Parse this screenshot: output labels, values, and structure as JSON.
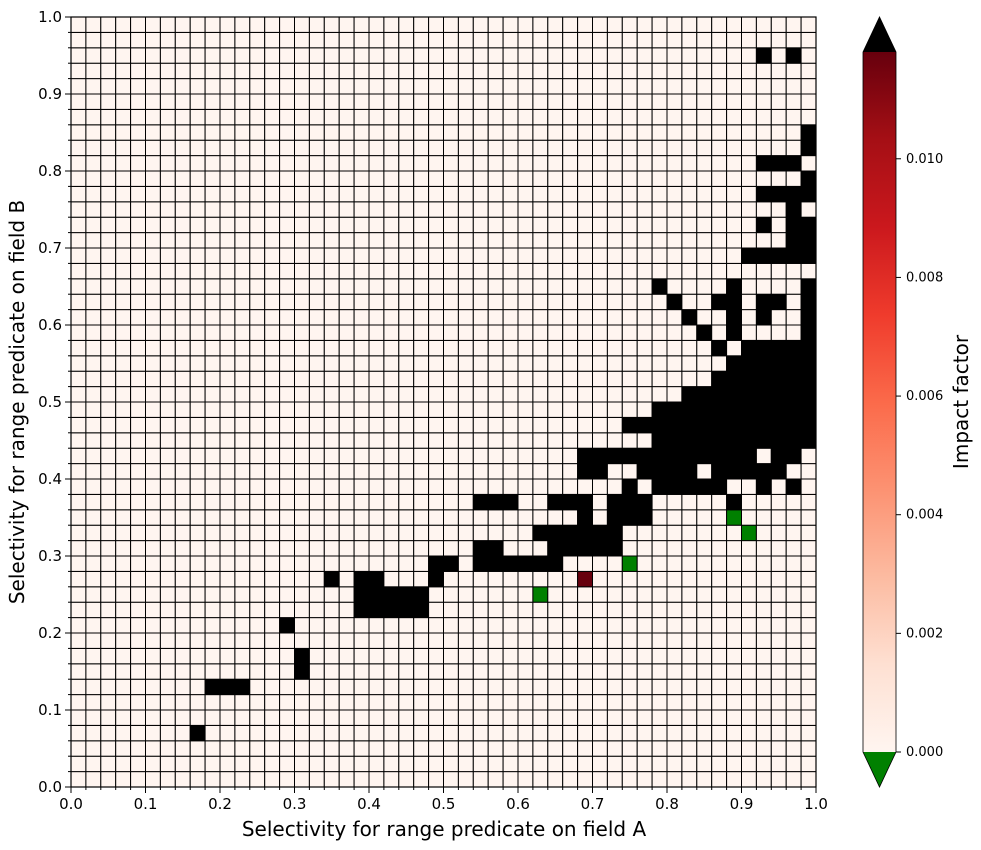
{
  "chart_data": {
    "type": "heatmap",
    "title": "",
    "xlabel": "Selectivity for range predicate on field A",
    "ylabel": "Selectivity for range predicate on field B",
    "xlim": [
      0.0,
      1.0
    ],
    "ylim": [
      0.0,
      1.0
    ],
    "grid_size": 50,
    "x_ticks": [
      "0.0",
      "0.1",
      "0.2",
      "0.3",
      "0.4",
      "0.5",
      "0.6",
      "0.7",
      "0.8",
      "0.9",
      "1.0"
    ],
    "y_ticks": [
      "0.0",
      "0.1",
      "0.2",
      "0.3",
      "0.4",
      "0.5",
      "0.6",
      "0.7",
      "0.8",
      "0.9",
      "1.0"
    ],
    "colorbar": {
      "label": "Impact factor",
      "colormap": "Reds",
      "vmin": 0.0,
      "vmax": 0.0118,
      "ticks": [
        "0.000",
        "0.002",
        "0.004",
        "0.006",
        "0.008",
        "0.010"
      ],
      "tick_values": [
        0.0,
        0.002,
        0.004,
        0.006,
        0.008,
        0.01
      ],
      "over_color": "#000000",
      "under_color": "#008000"
    },
    "background_value": 0.0002,
    "cell_colors": {
      "base": "#fff5f0",
      "over": "#000000",
      "under": "#008000",
      "max": "#67000d"
    },
    "over_cells": [
      [
        8,
        3
      ],
      [
        9,
        6
      ],
      [
        10,
        6
      ],
      [
        11,
        6
      ],
      [
        15,
        7
      ],
      [
        15,
        8
      ],
      [
        14,
        10
      ],
      [
        19,
        11
      ],
      [
        20,
        11
      ],
      [
        21,
        11
      ],
      [
        22,
        11
      ],
      [
        23,
        11
      ],
      [
        17,
        13
      ],
      [
        19,
        12
      ],
      [
        20,
        12
      ],
      [
        19,
        13
      ],
      [
        20,
        13
      ],
      [
        21,
        12
      ],
      [
        22,
        12
      ],
      [
        23,
        12
      ],
      [
        24,
        13
      ],
      [
        24,
        14
      ],
      [
        25,
        14
      ],
      [
        27,
        14
      ],
      [
        27,
        15
      ],
      [
        28,
        14
      ],
      [
        28,
        15
      ],
      [
        29,
        14
      ],
      [
        30,
        14
      ],
      [
        31,
        14
      ],
      [
        32,
        14
      ],
      [
        32,
        15
      ],
      [
        33,
        15
      ],
      [
        34,
        15
      ],
      [
        35,
        15
      ],
      [
        36,
        15
      ],
      [
        27,
        18
      ],
      [
        28,
        18
      ],
      [
        29,
        18
      ],
      [
        31,
        16
      ],
      [
        32,
        16
      ],
      [
        33,
        16
      ],
      [
        34,
        16
      ],
      [
        35,
        16
      ],
      [
        36,
        16
      ],
      [
        36,
        17
      ],
      [
        37,
        17
      ],
      [
        38,
        17
      ],
      [
        34,
        17
      ],
      [
        32,
        18
      ],
      [
        33,
        18
      ],
      [
        34,
        18
      ],
      [
        34,
        20
      ],
      [
        34,
        21
      ],
      [
        35,
        20
      ],
      [
        35,
        21
      ],
      [
        36,
        18
      ],
      [
        37,
        19
      ],
      [
        37,
        18
      ],
      [
        38,
        20
      ],
      [
        36,
        21
      ],
      [
        37,
        21
      ],
      [
        38,
        21
      ],
      [
        39,
        21
      ],
      [
        39,
        19
      ],
      [
        40,
        19
      ],
      [
        41,
        19
      ],
      [
        42,
        19
      ],
      [
        43,
        19
      ],
      [
        38,
        18
      ],
      [
        39,
        20
      ],
      [
        40,
        20
      ],
      [
        40,
        21
      ],
      [
        41,
        20
      ],
      [
        41,
        21
      ],
      [
        42,
        21
      ],
      [
        43,
        21
      ],
      [
        43,
        20
      ],
      [
        44,
        20
      ],
      [
        45,
        20
      ],
      [
        39,
        22
      ],
      [
        40,
        22
      ],
      [
        41,
        22
      ],
      [
        42,
        22
      ],
      [
        43,
        22
      ],
      [
        44,
        22
      ],
      [
        45,
        22
      ],
      [
        46,
        22
      ],
      [
        47,
        22
      ],
      [
        48,
        22
      ],
      [
        49,
        22
      ],
      [
        44,
        23
      ],
      [
        45,
        23
      ],
      [
        46,
        23
      ],
      [
        47,
        23
      ],
      [
        48,
        23
      ],
      [
        49,
        23
      ],
      [
        43,
        23
      ],
      [
        42,
        23
      ],
      [
        41,
        23
      ],
      [
        40,
        23
      ],
      [
        39,
        23
      ],
      [
        38,
        23
      ],
      [
        37,
        23
      ],
      [
        44,
        24
      ],
      [
        45,
        24
      ],
      [
        46,
        24
      ],
      [
        47,
        24
      ],
      [
        48,
        24
      ],
      [
        49,
        24
      ],
      [
        43,
        24
      ],
      [
        42,
        24
      ],
      [
        41,
        24
      ],
      [
        40,
        24
      ],
      [
        39,
        24
      ],
      [
        44,
        25
      ],
      [
        45,
        25
      ],
      [
        46,
        25
      ],
      [
        47,
        25
      ],
      [
        48,
        25
      ],
      [
        49,
        25
      ],
      [
        43,
        25
      ],
      [
        42,
        25
      ],
      [
        41,
        25
      ],
      [
        45,
        26
      ],
      [
        46,
        26
      ],
      [
        47,
        26
      ],
      [
        48,
        26
      ],
      [
        49,
        26
      ],
      [
        44,
        26
      ],
      [
        43,
        26
      ],
      [
        46,
        27
      ],
      [
        47,
        27
      ],
      [
        48,
        27
      ],
      [
        49,
        27
      ],
      [
        45,
        27
      ],
      [
        44,
        27
      ],
      [
        46,
        28
      ],
      [
        47,
        28
      ],
      [
        48,
        28
      ],
      [
        49,
        28
      ],
      [
        45,
        28
      ],
      [
        43,
        28
      ],
      [
        42,
        29
      ],
      [
        44,
        29
      ],
      [
        44,
        30
      ],
      [
        44,
        31
      ],
      [
        44,
        32
      ],
      [
        43,
        31
      ],
      [
        41,
        30
      ],
      [
        40,
        31
      ],
      [
        39,
        32
      ],
      [
        46,
        31
      ],
      [
        47,
        31
      ],
      [
        46,
        30
      ],
      [
        49,
        30
      ],
      [
        49,
        31
      ],
      [
        49,
        32
      ],
      [
        49,
        29
      ],
      [
        48,
        34
      ],
      [
        47,
        34
      ],
      [
        49,
        34
      ],
      [
        49,
        35
      ],
      [
        49,
        36
      ],
      [
        48,
        35
      ],
      [
        48,
        36
      ],
      [
        48,
        37
      ],
      [
        46,
        34
      ],
      [
        45,
        34
      ],
      [
        49,
        38
      ],
      [
        49,
        39
      ],
      [
        46,
        36
      ],
      [
        47,
        38
      ],
      [
        46,
        38
      ],
      [
        48,
        38
      ],
      [
        47,
        40
      ],
      [
        48,
        40
      ],
      [
        46,
        40
      ],
      [
        49,
        41
      ],
      [
        49,
        42
      ],
      [
        48,
        47
      ],
      [
        46,
        47
      ],
      [
        46,
        20
      ],
      [
        47,
        20
      ],
      [
        46,
        19
      ],
      [
        48,
        19
      ],
      [
        44,
        18
      ],
      [
        44,
        21
      ],
      [
        45,
        21
      ],
      [
        46,
        23
      ],
      [
        47,
        21
      ],
      [
        48,
        21
      ]
    ],
    "under_cells": [
      [
        42,
        17
      ],
      [
        43,
        17
      ],
      [
        44,
        16
      ],
      [
        45,
        19
      ],
      [
        46,
        16
      ],
      [
        47,
        17
      ],
      [
        48,
        17
      ],
      [
        49,
        18
      ],
      [
        44,
        19
      ],
      [
        45,
        18
      ],
      [
        43,
        18
      ]
    ],
    "green_cells": [
      [
        41,
        17
      ],
      [
        49,
        16
      ],
      [
        41,
        16
      ],
      [
        49,
        18
      ],
      [
        44,
        17
      ],
      [
        44,
        16
      ],
      [
        44,
        19
      ],
      [
        45,
        18
      ],
      [
        45,
        19
      ],
      [
        46,
        16
      ],
      [
        47,
        17
      ],
      [
        48,
        17
      ]
    ],
    "special_cells": {
      "green": [
        [
          31,
          12
        ],
        [
          37,
          14
        ],
        [
          44,
          17
        ],
        [
          45,
          16
        ]
      ],
      "max": [
        [
          34,
          13
        ]
      ]
    }
  }
}
